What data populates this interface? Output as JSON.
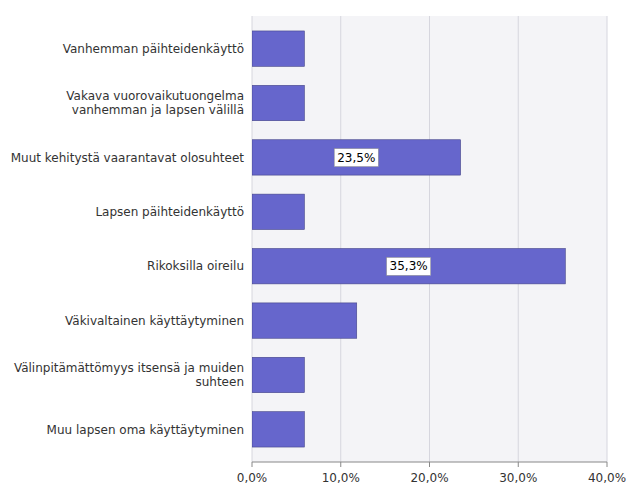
{
  "chart_data": {
    "type": "bar",
    "orientation": "horizontal",
    "categories": [
      "Muu lapsen oma käyttäytyminen",
      "Välinpitämättömyys itsensä ja muiden\nsuhteen",
      "Väkivaltainen käyttäytyminen",
      "Rikoksilla oireilu",
      "Lapsen päihteidenkäyttö",
      "Muut kehitystä vaarantavat olosuhteet",
      "Vakava vuorovaikutuongelma\nvanhemman ja lapsen välillä",
      "Vanhemman päihteidenkäyttö"
    ],
    "values": [
      5.9,
      5.9,
      11.8,
      35.3,
      5.9,
      23.5,
      5.9,
      5.9
    ],
    "data_labels": true,
    "value_labels": [
      null,
      null,
      null,
      "35,3%",
      null,
      "23,5%",
      null,
      null
    ],
    "color": "#6666cc",
    "xlim": [
      0,
      40
    ],
    "xticks": [
      {
        "value": 0,
        "label": "0,0%"
      },
      {
        "value": 10,
        "label": "10,0%"
      },
      {
        "value": 20,
        "label": "20,0%"
      },
      {
        "value": 30,
        "label": "30,0%"
      },
      {
        "value": 40,
        "label": "40,0%"
      }
    ],
    "grid": true
  }
}
